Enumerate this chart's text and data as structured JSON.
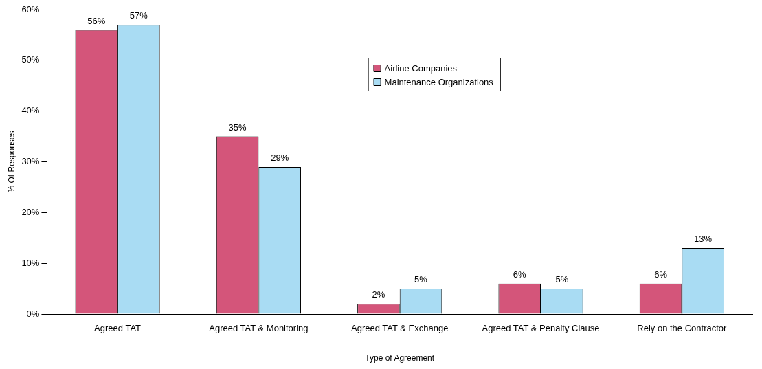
{
  "chart_data": {
    "type": "bar",
    "xlabel": "Type of Agreement",
    "ylabel": "% Of Responses",
    "categories": [
      "Agreed TAT",
      "Agreed TAT & Monitoring",
      "Agreed TAT & Exchange",
      "Agreed TAT & Penalty Clause",
      "Rely on the Contractor"
    ],
    "series": [
      {
        "name": "Airline Companies",
        "color": "#d4557a",
        "values": [
          56,
          35,
          2,
          6,
          6
        ],
        "value_labels": [
          "56%",
          "35%",
          "2%",
          "6%",
          "6%"
        ]
      },
      {
        "name": "Maintenance Organizations",
        "color": "#a9dcf3",
        "values": [
          57,
          29,
          5,
          5,
          13
        ],
        "value_labels": [
          "57%",
          "29%",
          "5%",
          "5%",
          "13%"
        ]
      }
    ],
    "ylim": [
      0,
      60
    ],
    "yticks": [
      {
        "value": 0,
        "label": "0%"
      },
      {
        "value": 10,
        "label": "10%"
      },
      {
        "value": 20,
        "label": "20%"
      },
      {
        "value": 30,
        "label": "30%"
      },
      {
        "value": 40,
        "label": "40%"
      },
      {
        "value": 50,
        "label": "50%"
      },
      {
        "value": 60,
        "label": "60%"
      }
    ],
    "grid": false,
    "legend": "top"
  }
}
